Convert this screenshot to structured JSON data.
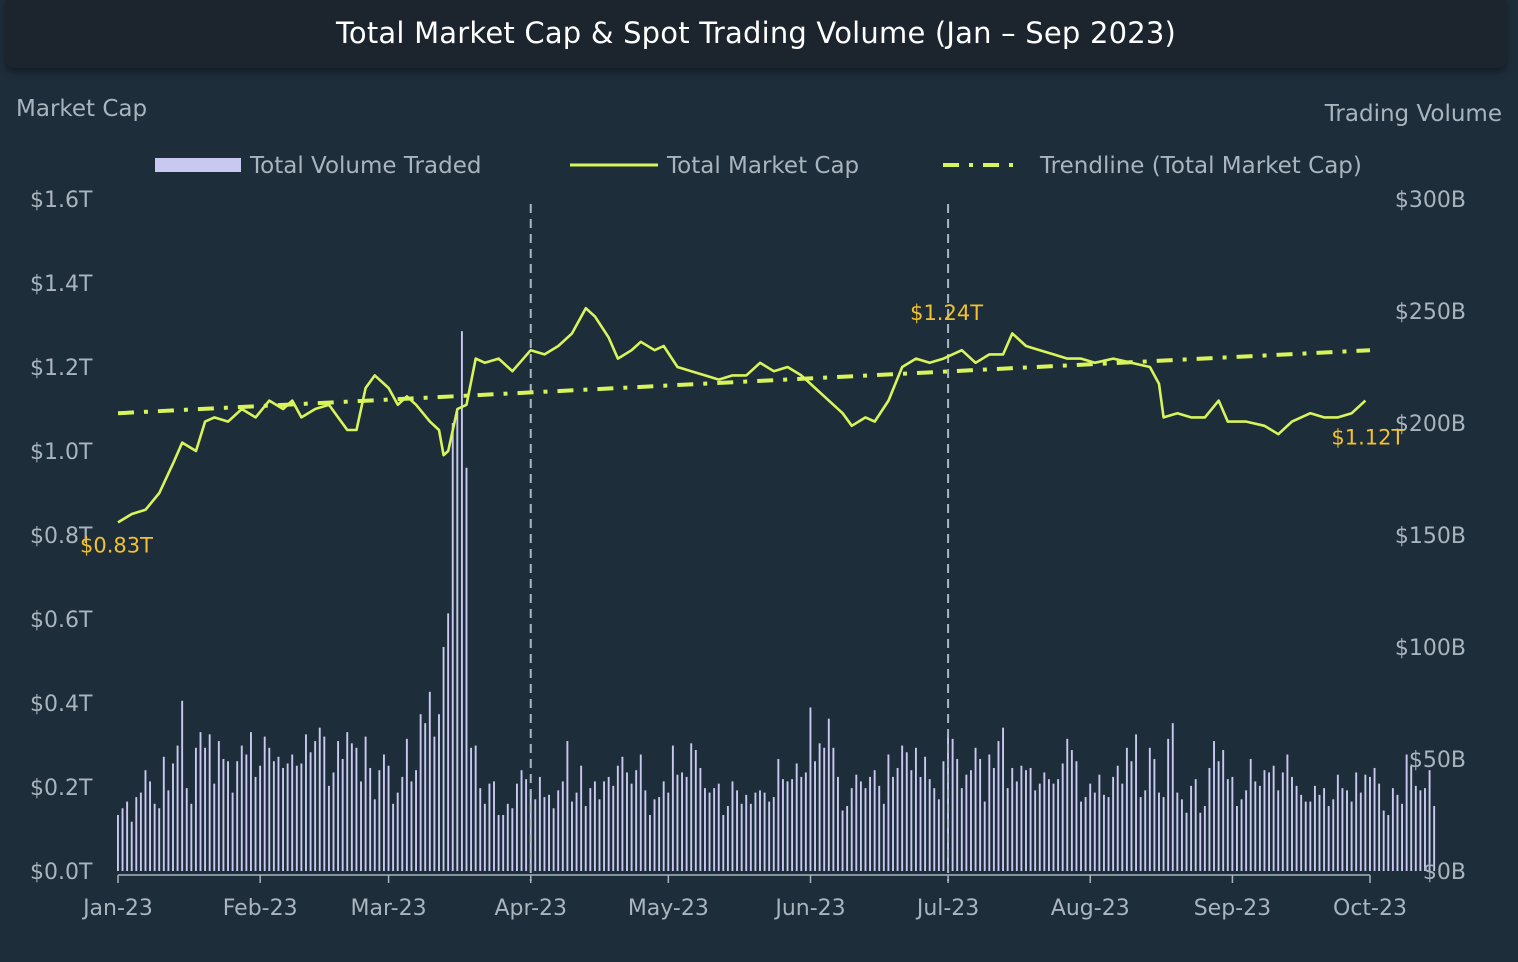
{
  "title": "Total Market Cap & Spot Trading Volume (Jan – Sep 2023)",
  "chart_data": {
    "type": "line",
    "title": "Total Market Cap & Spot Trading Volume (Jan – Sep 2023)",
    "y_left_label": "Market Cap",
    "y_right_label": "Trading Volume",
    "y_left_range": [
      0,
      1.6
    ],
    "y_left_ticks": [
      0,
      0.2,
      0.4,
      0.6,
      0.8,
      1.0,
      1.2,
      1.4,
      1.6
    ],
    "y_left_tick_labels": [
      "$0.0T",
      "$0.2T",
      "$0.4T",
      "$0.6T",
      "$0.8T",
      "$1.0T",
      "$1.2T",
      "$1.4T",
      "$1.6T"
    ],
    "y_right_range": [
      0,
      300
    ],
    "y_right_ticks": [
      0,
      50,
      100,
      150,
      200,
      250,
      300
    ],
    "y_right_tick_labels": [
      "$0B",
      "$50B",
      "$100B",
      "$150B",
      "$200B",
      "$250B",
      "$300B"
    ],
    "x_range": [
      "2023-01-01",
      "2023-10-01"
    ],
    "x_ticks": [
      "2023-01-01",
      "2023-02-01",
      "2023-03-01",
      "2023-04-01",
      "2023-05-01",
      "2023-06-01",
      "2023-07-01",
      "2023-08-01",
      "2023-09-01",
      "2023-10-01"
    ],
    "x_tick_labels": [
      "Jan-23",
      "Feb-23",
      "Mar-23",
      "Apr-23",
      "May-23",
      "Jun-23",
      "Jul-23",
      "Aug-23",
      "Sep-23",
      "Oct-23"
    ],
    "vertical_lines": [
      "2023-04-01",
      "2023-07-01"
    ],
    "legend": {
      "placement": "top",
      "items": [
        {
          "label": "Total Volume Traded",
          "style": "bar",
          "color": "#c8c8f0"
        },
        {
          "label": "Total Market Cap",
          "style": "line",
          "color": "#d7f55a"
        },
        {
          "label": "Trendline (Total Market Cap)",
          "style": "dash-dot",
          "color": "#d7f55a"
        }
      ]
    },
    "series": [
      {
        "name": "Total Market Cap",
        "kind": "line",
        "axis": "left",
        "color": "#d7f55a",
        "points": [
          [
            "2023-01-01",
            0.83
          ],
          [
            "2023-01-04",
            0.85
          ],
          [
            "2023-01-07",
            0.86
          ],
          [
            "2023-01-10",
            0.9
          ],
          [
            "2023-01-13",
            0.97
          ],
          [
            "2023-01-15",
            1.02
          ],
          [
            "2023-01-18",
            1.0
          ],
          [
            "2023-01-20",
            1.07
          ],
          [
            "2023-01-22",
            1.08
          ],
          [
            "2023-01-25",
            1.07
          ],
          [
            "2023-01-28",
            1.1
          ],
          [
            "2023-01-31",
            1.08
          ],
          [
            "2023-02-03",
            1.12
          ],
          [
            "2023-02-06",
            1.1
          ],
          [
            "2023-02-08",
            1.12
          ],
          [
            "2023-02-10",
            1.08
          ],
          [
            "2023-02-13",
            1.1
          ],
          [
            "2023-02-16",
            1.11
          ],
          [
            "2023-02-18",
            1.08
          ],
          [
            "2023-02-20",
            1.05
          ],
          [
            "2023-02-22",
            1.05
          ],
          [
            "2023-02-24",
            1.15
          ],
          [
            "2023-02-26",
            1.18
          ],
          [
            "2023-03-01",
            1.15
          ],
          [
            "2023-03-03",
            1.11
          ],
          [
            "2023-03-05",
            1.13
          ],
          [
            "2023-03-07",
            1.11
          ],
          [
            "2023-03-10",
            1.07
          ],
          [
            "2023-03-12",
            1.05
          ],
          [
            "2023-03-13",
            0.99
          ],
          [
            "2023-03-14",
            1.0
          ],
          [
            "2023-03-16",
            1.1
          ],
          [
            "2023-03-18",
            1.11
          ],
          [
            "2023-03-20",
            1.22
          ],
          [
            "2023-03-22",
            1.21
          ],
          [
            "2023-03-25",
            1.22
          ],
          [
            "2023-03-28",
            1.19
          ],
          [
            "2023-04-01",
            1.24
          ],
          [
            "2023-04-04",
            1.23
          ],
          [
            "2023-04-07",
            1.25
          ],
          [
            "2023-04-10",
            1.28
          ],
          [
            "2023-04-13",
            1.34
          ],
          [
            "2023-04-15",
            1.32
          ],
          [
            "2023-04-18",
            1.27
          ],
          [
            "2023-04-20",
            1.22
          ],
          [
            "2023-04-23",
            1.24
          ],
          [
            "2023-04-25",
            1.26
          ],
          [
            "2023-04-28",
            1.24
          ],
          [
            "2023-04-30",
            1.25
          ],
          [
            "2023-05-03",
            1.2
          ],
          [
            "2023-05-06",
            1.19
          ],
          [
            "2023-05-09",
            1.18
          ],
          [
            "2023-05-12",
            1.17
          ],
          [
            "2023-05-15",
            1.18
          ],
          [
            "2023-05-18",
            1.18
          ],
          [
            "2023-05-21",
            1.21
          ],
          [
            "2023-05-24",
            1.19
          ],
          [
            "2023-05-27",
            1.2
          ],
          [
            "2023-05-30",
            1.18
          ],
          [
            "2023-06-02",
            1.15
          ],
          [
            "2023-06-05",
            1.12
          ],
          [
            "2023-06-08",
            1.09
          ],
          [
            "2023-06-10",
            1.06
          ],
          [
            "2023-06-13",
            1.08
          ],
          [
            "2023-06-15",
            1.07
          ],
          [
            "2023-06-18",
            1.12
          ],
          [
            "2023-06-21",
            1.2
          ],
          [
            "2023-06-24",
            1.22
          ],
          [
            "2023-06-27",
            1.21
          ],
          [
            "2023-06-30",
            1.22
          ],
          [
            "2023-07-04",
            1.24
          ],
          [
            "2023-07-07",
            1.21
          ],
          [
            "2023-07-10",
            1.23
          ],
          [
            "2023-07-13",
            1.23
          ],
          [
            "2023-07-15",
            1.28
          ],
          [
            "2023-07-18",
            1.25
          ],
          [
            "2023-07-21",
            1.24
          ],
          [
            "2023-07-24",
            1.23
          ],
          [
            "2023-07-27",
            1.22
          ],
          [
            "2023-07-30",
            1.22
          ],
          [
            "2023-08-02",
            1.21
          ],
          [
            "2023-08-06",
            1.22
          ],
          [
            "2023-08-10",
            1.21
          ],
          [
            "2023-08-14",
            1.2
          ],
          [
            "2023-08-16",
            1.16
          ],
          [
            "2023-08-17",
            1.08
          ],
          [
            "2023-08-20",
            1.09
          ],
          [
            "2023-08-23",
            1.08
          ],
          [
            "2023-08-26",
            1.08
          ],
          [
            "2023-08-29",
            1.12
          ],
          [
            "2023-08-31",
            1.07
          ],
          [
            "2023-09-04",
            1.07
          ],
          [
            "2023-09-08",
            1.06
          ],
          [
            "2023-09-11",
            1.04
          ],
          [
            "2023-09-14",
            1.07
          ],
          [
            "2023-09-18",
            1.09
          ],
          [
            "2023-09-21",
            1.08
          ],
          [
            "2023-09-24",
            1.08
          ],
          [
            "2023-09-27",
            1.09
          ],
          [
            "2023-09-30",
            1.12
          ]
        ]
      },
      {
        "name": "Trendline (Total Market Cap)",
        "kind": "line",
        "axis": "left",
        "color": "#d7f55a",
        "points": [
          [
            "2023-01-01",
            1.09
          ],
          [
            "2023-10-01",
            1.24
          ]
        ]
      },
      {
        "name": "Total Volume Traded",
        "kind": "bar",
        "axis": "right",
        "color": "#c8c8f0",
        "unit": "B",
        "values_daily_from_2023-01-01": [
          25,
          28,
          31,
          22,
          33,
          35,
          45,
          40,
          30,
          28,
          51,
          36,
          48,
          56,
          76,
          37,
          30,
          55,
          62,
          55,
          61,
          39,
          58,
          50,
          49,
          35,
          49,
          56,
          52,
          62,
          42,
          47,
          60,
          55,
          49,
          51,
          46,
          48,
          52,
          47,
          48,
          61,
          53,
          58,
          64,
          60,
          38,
          44,
          58,
          50,
          62,
          57,
          55,
          40,
          60,
          46,
          32,
          45,
          52,
          47,
          30,
          35,
          42,
          59,
          40,
          45,
          70,
          66,
          80,
          60,
          70,
          100,
          115,
          200,
          205,
          241,
          180,
          55,
          56,
          37,
          30,
          39,
          40,
          25,
          25,
          30,
          28,
          39,
          45,
          41,
          36,
          32,
          42,
          33,
          34,
          28,
          36,
          40,
          58,
          31,
          35,
          47,
          29,
          37,
          40,
          32,
          40,
          42,
          38,
          47,
          51,
          44,
          39,
          45,
          52,
          36,
          25,
          32,
          33,
          40,
          35,
          56,
          43,
          44,
          42,
          57,
          54,
          46,
          37,
          35,
          37,
          39,
          25,
          29,
          40,
          36,
          30,
          34,
          30,
          35,
          36,
          35,
          31,
          33,
          50,
          41,
          40,
          41,
          48,
          42,
          44,
          73,
          49,
          57,
          55,
          68,
          55,
          42,
          27,
          29,
          37,
          43,
          40,
          37,
          42,
          45,
          38,
          30,
          52,
          42,
          46,
          56,
          53,
          45,
          55,
          42,
          51,
          41,
          37,
          32,
          49,
          62,
          59,
          50,
          37,
          43,
          45,
          55,
          50,
          31,
          52,
          46,
          58,
          64,
          37,
          46,
          40,
          47,
          45,
          46,
          36,
          39,
          44,
          41,
          39,
          41,
          48,
          59,
          54,
          49,
          31,
          33,
          39,
          35,
          43,
          34,
          33,
          42,
          47,
          39,
          55,
          49,
          61,
          33,
          36,
          55,
          50,
          35,
          33,
          59,
          66,
          35,
          32,
          26,
          38,
          41,
          26,
          29,
          46,
          58,
          49,
          54,
          41,
          42,
          29,
          32,
          36,
          50,
          40,
          38,
          45,
          44,
          47,
          36,
          44,
          52,
          42,
          38,
          34,
          31,
          31,
          38,
          34,
          37,
          29,
          32,
          43,
          37,
          36,
          31,
          44,
          35,
          43,
          42,
          46,
          39,
          27,
          25,
          37,
          34,
          30,
          52,
          47,
          38,
          36,
          37,
          45,
          29
        ]
      }
    ],
    "annotations": [
      {
        "text": "$0.83T",
        "x": "2023-01-01",
        "y": 0.83
      },
      {
        "text": "$1.24T",
        "x": "2023-07-01",
        "y": 1.24
      },
      {
        "text": "$1.12T",
        "x": "2023-09-30",
        "y": 1.12
      }
    ]
  }
}
